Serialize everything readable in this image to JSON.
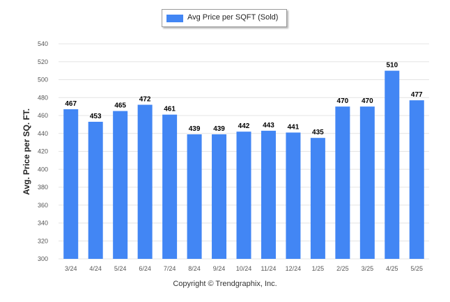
{
  "colors": {
    "bar": "#4286f4",
    "grid": "#e4e4e4",
    "axis_text": "#555555",
    "label_text": "#000000"
  },
  "legend": {
    "label": "Avg Price per SQFT (Sold)"
  },
  "footer": {
    "copyright": "Copyright © Trendgraphix, Inc."
  },
  "chart_data": {
    "type": "bar",
    "ylabel": "Avg. Price per SQ. FT.",
    "xlabel": "",
    "ylim": [
      300,
      540
    ],
    "yticks": [
      300,
      320,
      340,
      360,
      380,
      400,
      420,
      440,
      460,
      480,
      500,
      520,
      540
    ],
    "grid": true,
    "legend_position": "top-center",
    "categories": [
      "3/24",
      "4/24",
      "5/24",
      "6/24",
      "7/24",
      "8/24",
      "9/24",
      "10/24",
      "11/24",
      "12/24",
      "1/25",
      "2/25",
      "3/25",
      "4/25",
      "5/25"
    ],
    "series": [
      {
        "name": "Avg Price per SQFT (Sold)",
        "values": [
          467,
          453,
          465,
          472,
          461,
          439,
          439,
          442,
          443,
          441,
          435,
          470,
          470,
          510,
          477
        ]
      }
    ]
  }
}
